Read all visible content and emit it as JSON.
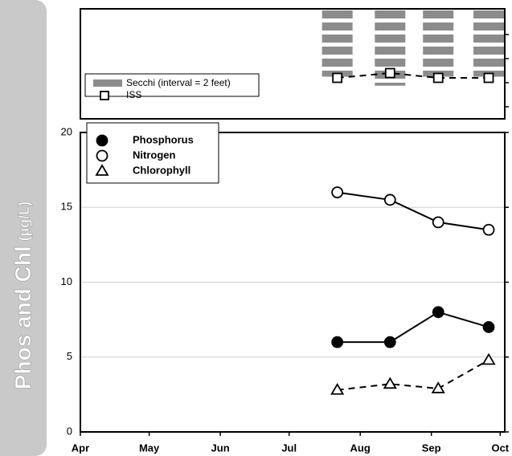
{
  "chart_data": [
    {
      "type": "combo",
      "x": [
        203,
        226,
        247,
        269
      ],
      "xlim": [
        91,
        276
      ],
      "ylim": [
        0,
        18
      ],
      "yticks": [
        4,
        8,
        12,
        16
      ],
      "inverted": true,
      "series": [
        {
          "name": "Secchi (interval = 2 feet)",
          "mark": "bar",
          "color": "#8c8c8c",
          "values": [
            11,
            12.5,
            11,
            11
          ]
        },
        {
          "name": "ISS",
          "mark": "line",
          "marker": "square",
          "dash": true,
          "color": "#000000",
          "values": [
            11.2,
            10.4,
            11.2,
            11.2
          ]
        }
      ]
    },
    {
      "type": "line",
      "ylabel": "Phos and Chl",
      "ylabel_units": "(µg/L)",
      "x": [
        203,
        226,
        247,
        269
      ],
      "xlim": [
        91,
        276
      ],
      "xticks": [
        {
          "value": 91,
          "label": "Apr"
        },
        {
          "value": 121,
          "label": "May"
        },
        {
          "value": 152,
          "label": "Jun"
        },
        {
          "value": 182,
          "label": "Jul"
        },
        {
          "value": 213,
          "label": "Aug"
        },
        {
          "value": 244,
          "label": "Sep"
        },
        {
          "value": 274,
          "label": "Oct"
        }
      ],
      "ylim": [
        0,
        20
      ],
      "yticks": [
        0,
        5,
        10,
        15,
        20
      ],
      "grid": true,
      "series": [
        {
          "name": "Phosphorus",
          "marker": "filled-circle",
          "dash": false,
          "color": "#000000",
          "values": [
            6,
            6,
            8,
            7
          ]
        },
        {
          "name": "Nitrogen",
          "marker": "open-circle",
          "dash": false,
          "color": "#000000",
          "values": [
            16,
            15.5,
            14,
            13.5
          ]
        },
        {
          "name": "Chlorophyll",
          "marker": "open-triangle",
          "dash": true,
          "color": "#000000",
          "values": [
            2.8,
            3.2,
            2.9,
            4.8
          ]
        }
      ]
    }
  ]
}
